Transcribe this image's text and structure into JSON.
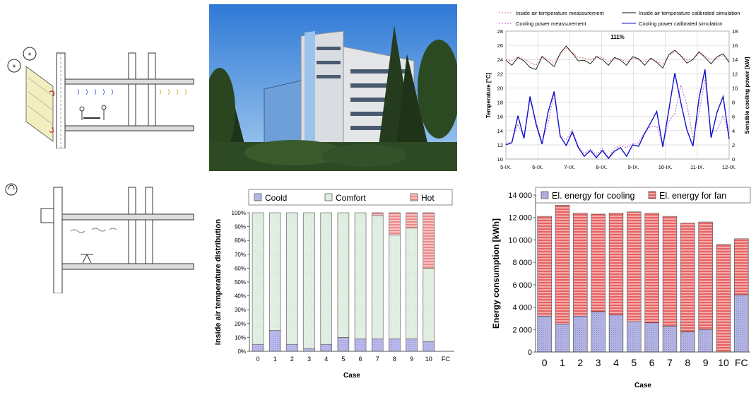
{
  "colors": {
    "cool_fill": "#b9b9ec",
    "comfort_fill": "#e3efe3",
    "hot_fill": "#f6c4c4",
    "hot_stripe": "#dd3333",
    "cooling_energy_fill": "#b3b3e3",
    "fan_energy_fill": "#ec8080",
    "temp_meas": "#e07070",
    "temp_sim": "#111111",
    "cool_meas": "#c060c0",
    "cool_sim": "#1010cc"
  },
  "drawings": {
    "label_top": "Section drawing with shading louvres and cooling beams",
    "label_bottom": "Section drawing with fan coil"
  },
  "photo": {
    "icon": "office-building-photo"
  },
  "chart_data": [
    {
      "id": "timeseries",
      "type": "line",
      "title": "111%",
      "ylabel_left": "Temperature [°C]",
      "ylabel_right": "Sensible cooling power [kW]",
      "ylim_left": [
        10,
        28
      ],
      "ylim_right": [
        0,
        18
      ],
      "yticks_left": [
        "28",
        "26",
        "24",
        "22",
        "20",
        "18",
        "16",
        "14",
        "12",
        "10"
      ],
      "yticks_right": [
        "18",
        "16",
        "14",
        "12",
        "10",
        "8",
        "6",
        "4",
        "2",
        "0"
      ],
      "xticks": [
        "5-IX.",
        "6-IX.",
        "7-IX.",
        "8-IX.",
        "9-IX.",
        "10-IX.",
        "11-IX.",
        "12-IX."
      ],
      "grid": true,
      "legend": [
        "Inside air temperature meassurement",
        "Inside air temperature calibrated simulation",
        "Cooling power meassurement",
        "Cooling power calibrated simulation"
      ],
      "series": [
        {
          "name": "Inside air temperature meassurement",
          "axis": "left",
          "values": [
            24.0,
            23.8,
            24.4,
            24.1,
            23.6,
            23.2,
            24.5,
            24.0,
            23.6,
            24.7,
            25.6,
            25.0,
            24.3,
            24.2,
            23.9,
            24.5,
            24.3,
            23.7,
            24.2,
            24.1,
            23.6,
            24.2,
            24.0,
            23.6,
            24.0,
            23.8,
            23.3,
            24.5,
            25.1,
            24.6,
            23.9,
            24.1,
            24.9,
            24.5,
            24.0,
            24.2,
            24.6,
            23.9
          ]
        },
        {
          "name": "Inside air temperature calibrated simulation",
          "axis": "left",
          "values": [
            23.9,
            23.2,
            24.3,
            23.8,
            22.9,
            22.6,
            24.4,
            23.7,
            23.0,
            24.9,
            25.9,
            24.9,
            23.8,
            23.9,
            23.4,
            24.4,
            24.0,
            23.2,
            24.3,
            23.9,
            23.2,
            24.4,
            24.1,
            23.2,
            24.2,
            23.6,
            22.8,
            24.7,
            25.3,
            24.5,
            23.5,
            24.0,
            25.1,
            24.3,
            23.4,
            24.4,
            24.8,
            23.6
          ]
        },
        {
          "name": "Cooling power meassurement",
          "axis": "right",
          "values": [
            2.2,
            2.5,
            4.9,
            3.1,
            8.3,
            5.3,
            2.4,
            5.1,
            9.1,
            3.4,
            2.7,
            4.1,
            1.8,
            0.8,
            1.4,
            0.6,
            1.5,
            0.2,
            1.5,
            1.9,
            1.6,
            2.2,
            2.3,
            3.8,
            4.6,
            4.6,
            2.1,
            5.3,
            6.4,
            10.4,
            7.6,
            3.0,
            6.4,
            11.2,
            3.6,
            4.1,
            6.1,
            3.2
          ]
        },
        {
          "name": "Cooling power calibrated simulation",
          "axis": "right",
          "values": [
            2.0,
            2.3,
            6.1,
            2.9,
            8.8,
            4.9,
            2.1,
            6.6,
            9.5,
            3.2,
            1.9,
            3.8,
            1.6,
            0.4,
            1.2,
            0.2,
            1.2,
            0.1,
            1.1,
            1.6,
            0.4,
            2.0,
            1.8,
            3.6,
            5.1,
            6.7,
            1.7,
            6.9,
            12.1,
            7.9,
            4.1,
            1.8,
            8.5,
            12.6,
            3.0,
            6.6,
            8.8,
            2.8
          ]
        }
      ]
    },
    {
      "id": "distribution",
      "type": "bar",
      "stacked": true,
      "legend": [
        "Coold",
        "Comfort",
        "Hot"
      ],
      "ylabel": "Inside air temperature distribution",
      "xlabel": "Case",
      "ylim": [
        0,
        100
      ],
      "yticks": [
        "0%",
        "10%",
        "20%",
        "30%",
        "40%",
        "50%",
        "60%",
        "70%",
        "80%",
        "90%",
        "100%"
      ],
      "categories": [
        "0",
        "1",
        "2",
        "3",
        "4",
        "5",
        "6",
        "7",
        "8",
        "9",
        "10",
        "FC"
      ],
      "series": [
        {
          "name": "Coold",
          "values": [
            5,
            15,
            5,
            2,
            5,
            10,
            9,
            9,
            9,
            9,
            7,
            0
          ]
        },
        {
          "name": "Comfort",
          "values": [
            95,
            85,
            95,
            98,
            95,
            90,
            91,
            89,
            75,
            80,
            53,
            0
          ]
        },
        {
          "name": "Hot",
          "values": [
            0,
            0,
            0,
            0,
            0,
            0,
            0,
            2,
            16,
            11,
            40,
            0
          ]
        }
      ]
    },
    {
      "id": "energy",
      "type": "bar",
      "stacked": true,
      "legend": [
        "El. energy for cooling",
        "El. energy for fan"
      ],
      "ylabel": "Energy consumption [kWh]",
      "xlabel": "Case",
      "ylim": [
        0,
        14000
      ],
      "yticks": [
        "14 000",
        "12 000",
        "10 000",
        "8 000",
        "6 000",
        "4 000",
        "2 000",
        "0"
      ],
      "categories": [
        "0",
        "1",
        "2",
        "3",
        "4",
        "5",
        "6",
        "7",
        "8",
        "9",
        "10",
        "FC"
      ],
      "series": [
        {
          "name": "El. energy for cooling",
          "values": [
            3200,
            2500,
            3200,
            3600,
            3300,
            2700,
            2600,
            2300,
            1800,
            2000,
            0,
            5100
          ]
        },
        {
          "name": "El. energy for fan",
          "values": [
            8900,
            10600,
            9200,
            8700,
            9100,
            9800,
            9800,
            9800,
            9700,
            9600,
            9600,
            5000
          ]
        }
      ]
    }
  ]
}
